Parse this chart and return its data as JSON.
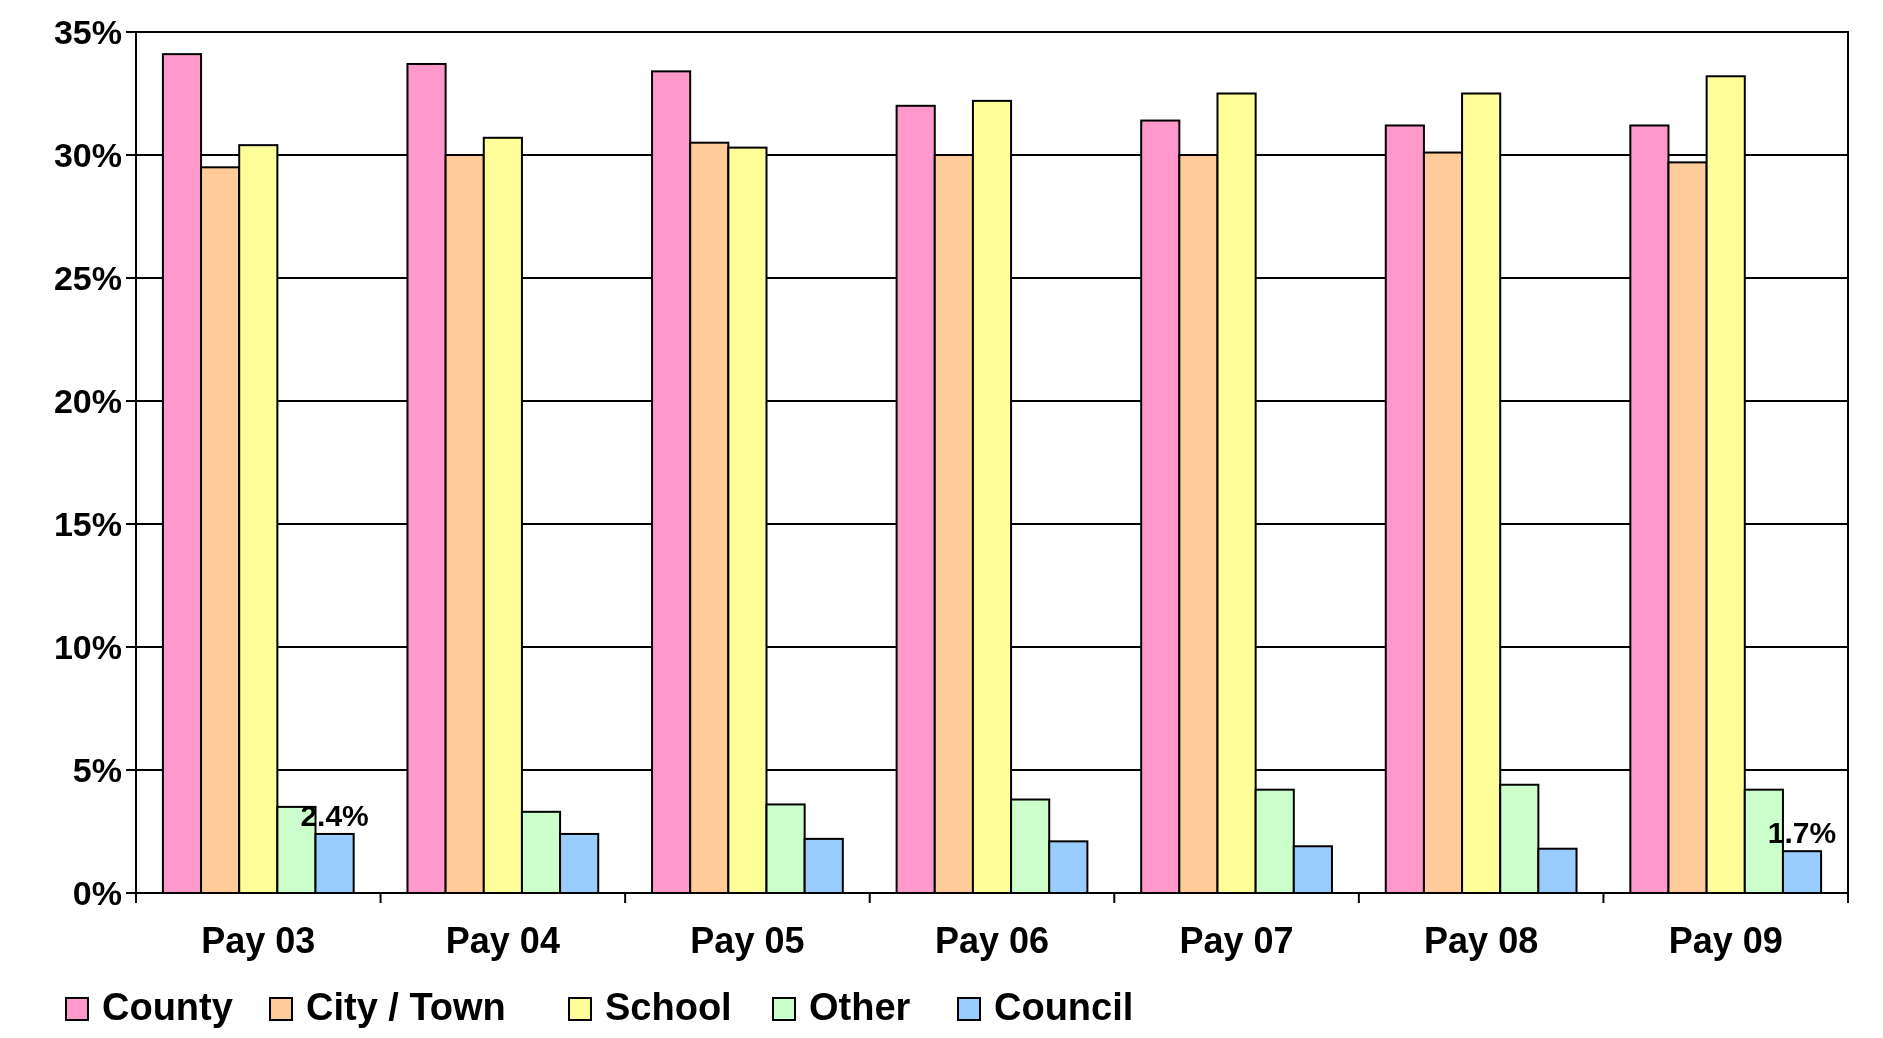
{
  "chart_data": {
    "type": "bar",
    "categories": [
      "Pay 03",
      "Pay 04",
      "Pay 05",
      "Pay 06",
      "Pay 07",
      "Pay 08",
      "Pay 09"
    ],
    "series": [
      {
        "name": "County",
        "color": "#ff99cc",
        "values": [
          34.1,
          33.7,
          33.4,
          32.0,
          31.4,
          31.2,
          31.2
        ]
      },
      {
        "name": "City / Town",
        "color": "#ffcc99",
        "values": [
          29.5,
          30.0,
          30.5,
          30.0,
          30.0,
          30.1,
          29.7
        ]
      },
      {
        "name": "School",
        "color": "#ffff99",
        "values": [
          30.4,
          30.7,
          30.3,
          32.2,
          32.5,
          32.5,
          33.2
        ]
      },
      {
        "name": "Other",
        "color": "#ccffcc",
        "values": [
          3.5,
          3.3,
          3.6,
          3.8,
          4.2,
          4.4,
          4.2
        ]
      },
      {
        "name": "Council",
        "color": "#99ccff",
        "values": [
          2.4,
          2.4,
          2.2,
          2.1,
          1.9,
          1.8,
          1.7
        ],
        "value_labels": [
          "2.4%",
          null,
          null,
          null,
          null,
          null,
          "1.7%"
        ]
      }
    ],
    "ylim": [
      0,
      35
    ],
    "yticks": [
      {
        "value": 0,
        "label": "0%"
      },
      {
        "value": 5,
        "label": "5%"
      },
      {
        "value": 10,
        "label": "10%"
      },
      {
        "value": 15,
        "label": "15%"
      },
      {
        "value": 20,
        "label": "20%"
      },
      {
        "value": 25,
        "label": "25%"
      },
      {
        "value": 30,
        "label": "30%"
      },
      {
        "value": 35,
        "label": "35%"
      }
    ],
    "grid": "y",
    "legend": "bottom"
  }
}
